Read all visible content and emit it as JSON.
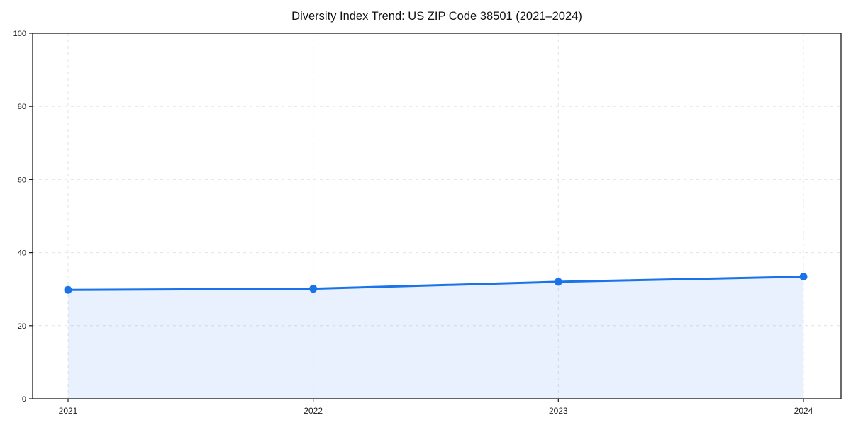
{
  "chart_data": {
    "type": "area",
    "title": "Diversity Index Trend: US ZIP Code 38501 (2021–2024)",
    "series_name": "Diversity Index",
    "x": [
      "2021",
      "2022",
      "2023",
      "2024"
    ],
    "values": [
      29.8,
      30.1,
      32.0,
      33.4
    ],
    "xlabel": "",
    "ylabel": "",
    "ylim": [
      0,
      100
    ],
    "yticks": [
      0,
      20,
      40,
      60,
      80,
      100
    ],
    "grid": true,
    "grid_style": "dashed",
    "legend": "none",
    "colors": {
      "line": "#1a73e8",
      "marker": "#1a73e8",
      "fill": "#1a73e8",
      "fill_opacity": 0.1,
      "grid": "#e3e3e3",
      "frame": "#1a1a1a",
      "tick_text": "#1a1a1a",
      "background": "#ffffff"
    }
  }
}
